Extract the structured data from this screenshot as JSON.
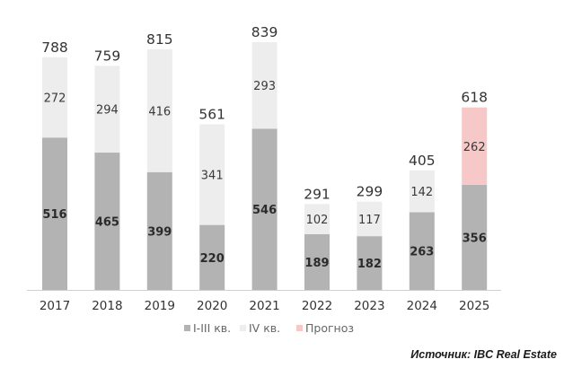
{
  "chart_data": {
    "type": "bar",
    "stacked": true,
    "categories": [
      "2017",
      "2018",
      "2019",
      "2020",
      "2021",
      "2022",
      "2023",
      "2024",
      "2025"
    ],
    "series": [
      {
        "name": "I-III кв.",
        "values": [
          516,
          465,
          399,
          220,
          546,
          189,
          182,
          263,
          356
        ],
        "color": "#b3b3b3"
      },
      {
        "name": "IV кв.",
        "values": [
          272,
          294,
          416,
          341,
          293,
          102,
          117,
          142,
          null
        ],
        "color": "#ededed"
      },
      {
        "name": "Прогноз",
        "values": [
          null,
          null,
          null,
          null,
          null,
          null,
          null,
          null,
          262
        ],
        "color": "#f7c8c8"
      }
    ],
    "totals": [
      788,
      759,
      815,
      561,
      839,
      291,
      299,
      405,
      618
    ],
    "ylim": [
      0,
      900
    ],
    "grid": false,
    "legend_position": "bottom",
    "source": "Источник: IBC Real Estate"
  }
}
